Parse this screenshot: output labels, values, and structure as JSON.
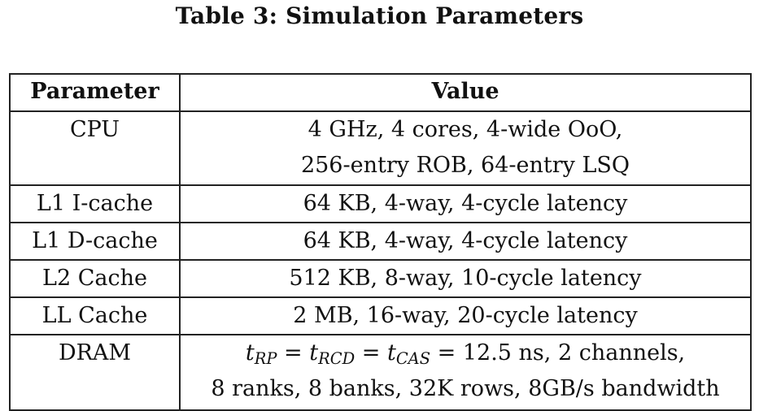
{
  "caption": "Table 3: Simulation Parameters",
  "table": {
    "headers": {
      "parameter": "Parameter",
      "value": "Value"
    },
    "rows": [
      {
        "parameter": "CPU",
        "value_lines": [
          "4 GHz, 4 cores, 4-wide OoO,",
          "256-entry ROB, 64-entry LSQ"
        ]
      },
      {
        "parameter": "L1 I-cache",
        "value_lines": [
          "64 KB, 4-way, 4-cycle latency"
        ]
      },
      {
        "parameter": "L1 D-cache",
        "value_lines": [
          "64 KB, 4-way, 4-cycle latency"
        ]
      },
      {
        "parameter": "L2 Cache",
        "value_lines": [
          "512 KB, 8-way, 10-cycle latency"
        ]
      },
      {
        "parameter": "LL Cache",
        "value_lines": [
          "2 MB, 16-way, 20-cycle latency"
        ]
      },
      {
        "parameter": "DRAM",
        "value_math": {
          "t1": "t",
          "s1": "RP",
          "eq1": " = ",
          "t2": "t",
          "s2": "RCD",
          "eq2": " = ",
          "t3": "t",
          "s3": "CAS",
          "rest": " = 12.5 ns, 2 channels,"
        },
        "value_lines": [
          "8 ranks, 8 banks, 32K rows, 8GB/s bandwidth"
        ]
      }
    ]
  }
}
